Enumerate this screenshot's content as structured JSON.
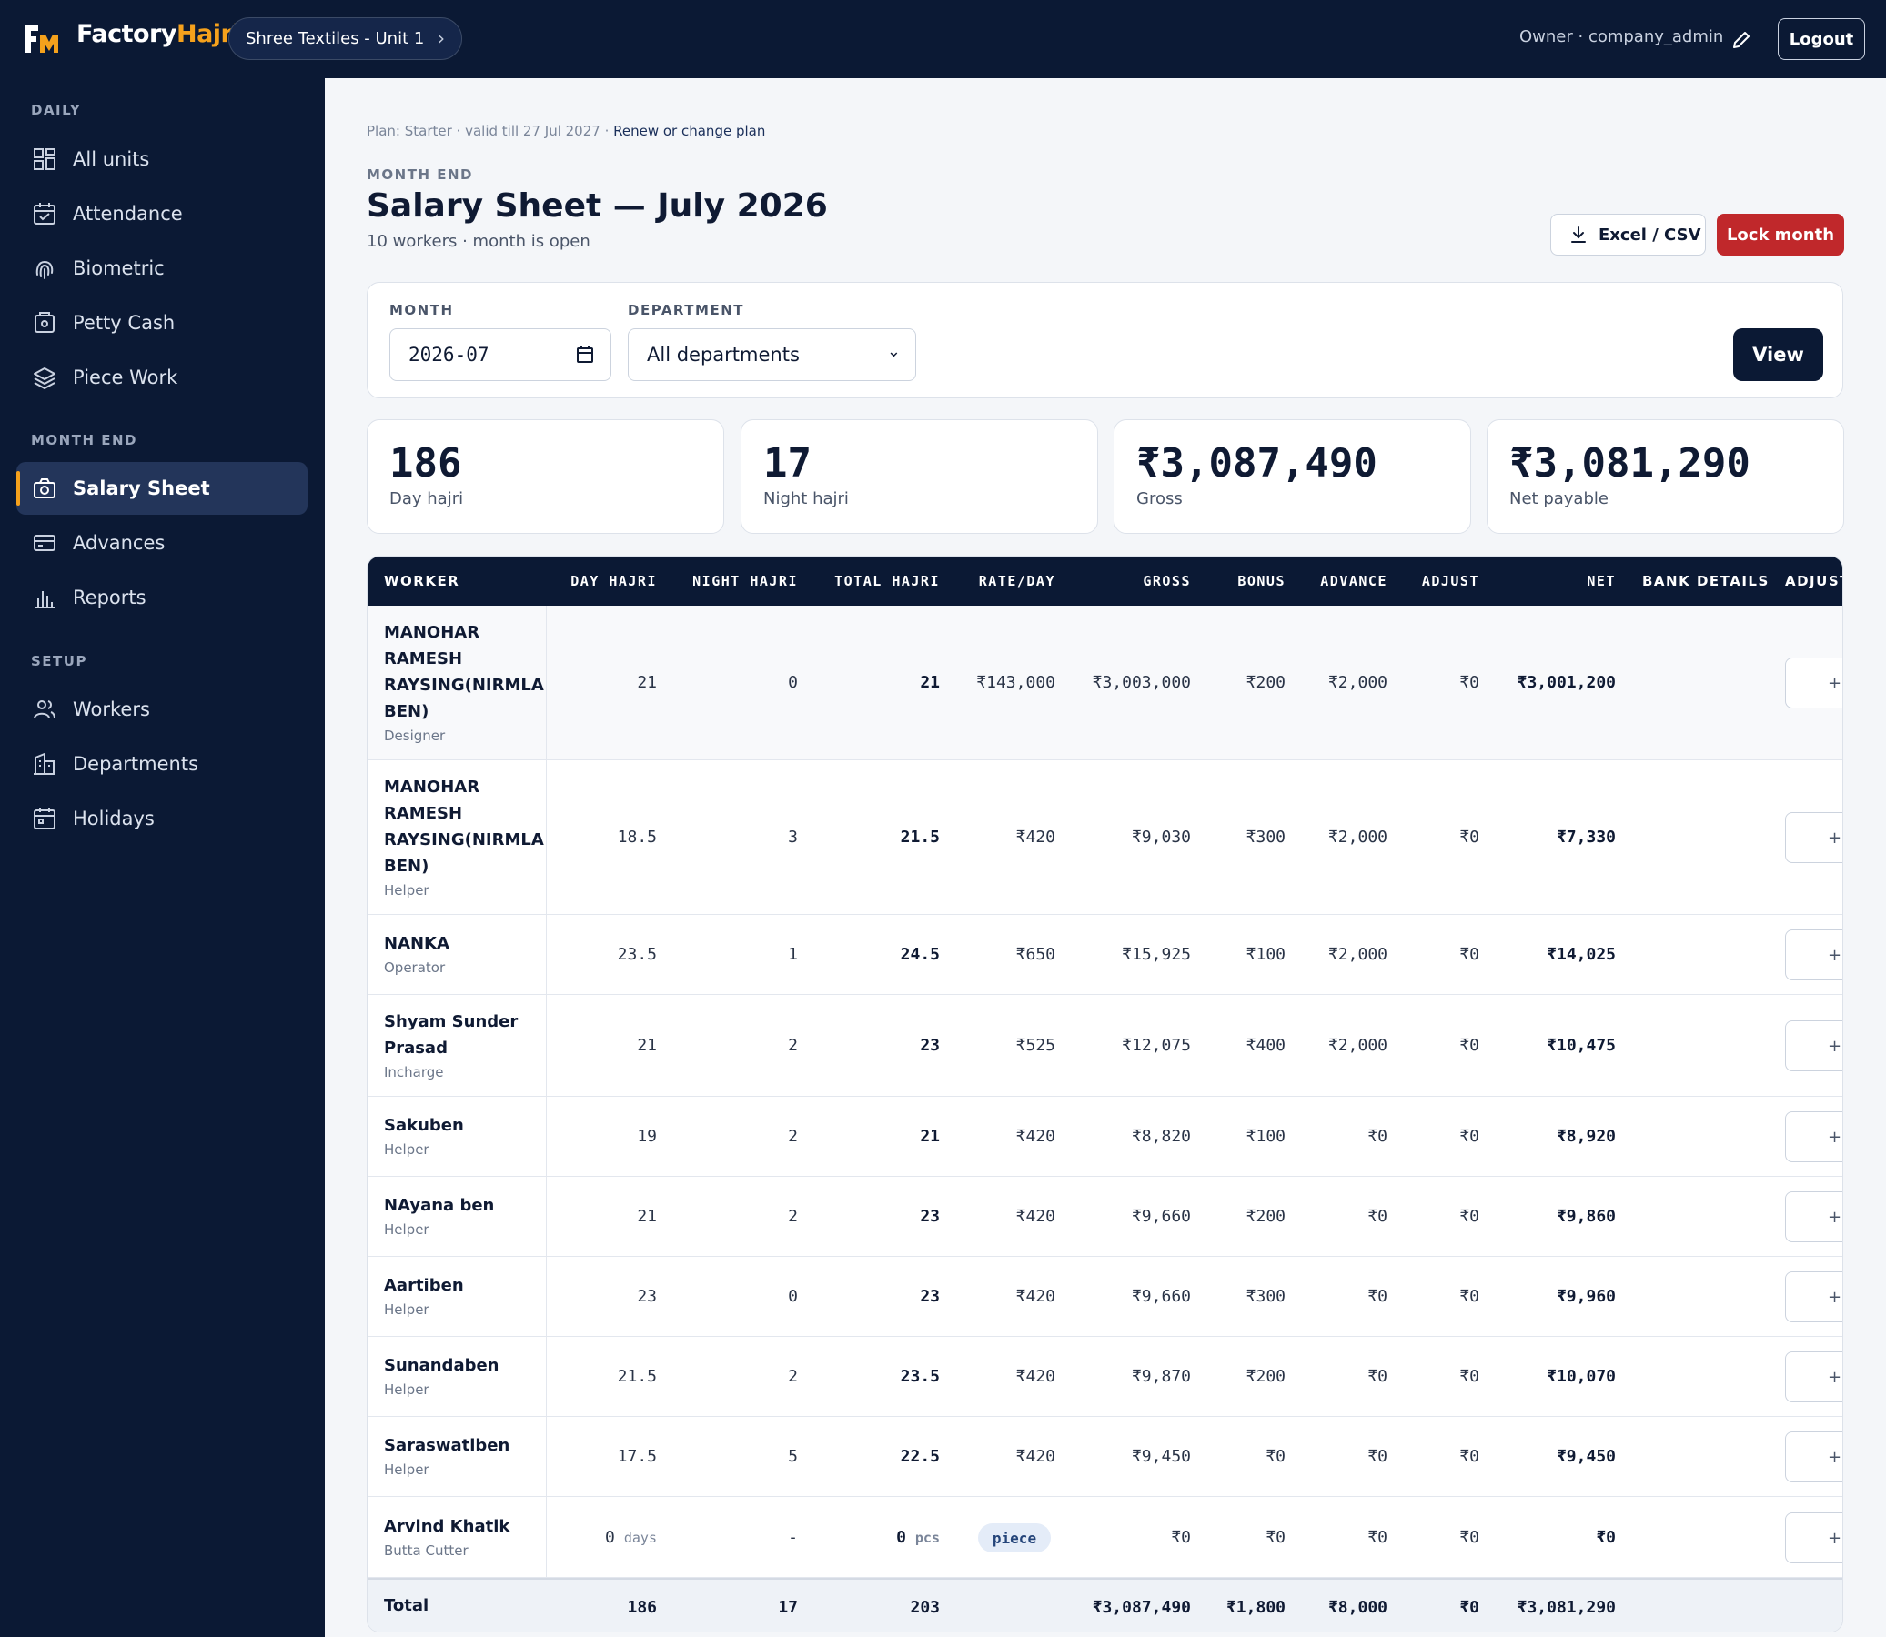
{
  "header": {
    "brand_main": "Factory",
    "brand_accent": "Hajri",
    "unit_selector": "Shree Textiles - Unit 1",
    "user": "Owner · company_admin",
    "logout": "Logout"
  },
  "sidebar": {
    "sections": {
      "daily": "DAILY",
      "month_end": "MONTH END",
      "setup": "SETUP"
    },
    "items": [
      {
        "label": "All units",
        "icon": "grid-icon"
      },
      {
        "label": "Attendance",
        "icon": "calendar-check-icon"
      },
      {
        "label": "Biometric",
        "icon": "fingerprint-icon"
      },
      {
        "label": "Petty Cash",
        "icon": "cash-box-icon"
      },
      {
        "label": "Piece Work",
        "icon": "layers-icon"
      },
      {
        "label": "Salary Sheet",
        "icon": "salary-camera-icon",
        "active": true
      },
      {
        "label": "Advances",
        "icon": "card-icon"
      },
      {
        "label": "Reports",
        "icon": "bar-chart-icon"
      },
      {
        "label": "Workers",
        "icon": "users-icon"
      },
      {
        "label": "Departments",
        "icon": "building-icon"
      },
      {
        "label": "Holidays",
        "icon": "calendar-icon"
      }
    ]
  },
  "plan": {
    "text": "Plan: Starter · valid till 27 Jul 2027 · ",
    "link": "Renew or change plan"
  },
  "page": {
    "eyebrow": "MONTH END",
    "title": "Salary Sheet — July 2026",
    "subtitle": "10 workers · month is open",
    "excel_button": "Excel / CSV",
    "lock_button": "Lock month"
  },
  "filters": {
    "month_label": "MONTH",
    "month_value": "2026-07",
    "department_label": "DEPARTMENT",
    "department_value": "All departments",
    "view_button": "View"
  },
  "stats": [
    {
      "value": "186",
      "label": "Day hajri"
    },
    {
      "value": "17",
      "label": "Night hajri"
    },
    {
      "value": "₹3,087,490",
      "label": "Gross"
    },
    {
      "value": "₹3,081,290",
      "label": "Net payable"
    }
  ],
  "table": {
    "headers": {
      "worker": "WORKER",
      "day": "DAY HAJRI",
      "night": "NIGHT HAJRI",
      "total": "TOTAL HAJRI",
      "rate": "RATE/DAY",
      "gross": "GROSS",
      "bonus": "BONUS",
      "advance": "ADVANCE",
      "adjust": "ADJUST",
      "net": "NET",
      "bank": "BANK DETAILS",
      "adjust2": "ADJUST"
    },
    "adjust_button": "+",
    "rows": [
      {
        "name": "MANOHAR RAMESH RAYSING(NIRMLA BEN)",
        "role": "Designer",
        "day": "21",
        "night": "0",
        "total": "21",
        "rate": "₹143,000",
        "gross": "₹3,003,000",
        "bonus": "₹200",
        "advance": "₹2,000",
        "adjust": "₹0",
        "net": "₹3,001,200"
      },
      {
        "name": "MANOHAR RAMESH RAYSING(NIRMLA BEN)",
        "role": "Helper",
        "day": "18.5",
        "night": "3",
        "total": "21.5",
        "rate": "₹420",
        "gross": "₹9,030",
        "bonus": "₹300",
        "advance": "₹2,000",
        "adjust": "₹0",
        "net": "₹7,330"
      },
      {
        "name": "NANKA",
        "role": "Operator",
        "day": "23.5",
        "night": "1",
        "total": "24.5",
        "rate": "₹650",
        "gross": "₹15,925",
        "bonus": "₹100",
        "advance": "₹2,000",
        "adjust": "₹0",
        "net": "₹14,025"
      },
      {
        "name": "Shyam Sunder Prasad",
        "role": "Incharge",
        "day": "21",
        "night": "2",
        "total": "23",
        "rate": "₹525",
        "gross": "₹12,075",
        "bonus": "₹400",
        "advance": "₹2,000",
        "adjust": "₹0",
        "net": "₹10,475"
      },
      {
        "name": "Sakuben",
        "role": "Helper",
        "day": "19",
        "night": "2",
        "total": "21",
        "rate": "₹420",
        "gross": "₹8,820",
        "bonus": "₹100",
        "advance": "₹0",
        "adjust": "₹0",
        "net": "₹8,920"
      },
      {
        "name": "NAyana ben",
        "role": "Helper",
        "day": "21",
        "night": "2",
        "total": "23",
        "rate": "₹420",
        "gross": "₹9,660",
        "bonus": "₹200",
        "advance": "₹0",
        "adjust": "₹0",
        "net": "₹9,860"
      },
      {
        "name": "Aartiben",
        "role": "Helper",
        "day": "23",
        "night": "0",
        "total": "23",
        "rate": "₹420",
        "gross": "₹9,660",
        "bonus": "₹300",
        "advance": "₹0",
        "adjust": "₹0",
        "net": "₹9,960"
      },
      {
        "name": "Sunandaben",
        "role": "Helper",
        "day": "21.5",
        "night": "2",
        "total": "23.5",
        "rate": "₹420",
        "gross": "₹9,870",
        "bonus": "₹200",
        "advance": "₹0",
        "adjust": "₹0",
        "net": "₹10,070"
      },
      {
        "name": "Saraswatiben",
        "role": "Helper",
        "day": "17.5",
        "night": "5",
        "total": "22.5",
        "rate": "₹420",
        "gross": "₹9,450",
        "bonus": "₹0",
        "advance": "₹0",
        "adjust": "₹0",
        "net": "₹9,450"
      },
      {
        "name": "Arvind Khatik",
        "role": "Butta Cutter",
        "day": "0",
        "day_unit": "days",
        "night": "-",
        "total": "0",
        "total_unit": "pcs",
        "rate_badge": "piece",
        "gross": "₹0",
        "bonus": "₹0",
        "advance": "₹0",
        "adjust": "₹0",
        "net": "₹0"
      }
    ],
    "totals": {
      "label": "Total",
      "day": "186",
      "night": "17",
      "total": "203",
      "gross": "₹3,087,490",
      "bonus": "₹1,800",
      "advance": "₹8,000",
      "adjust": "₹0",
      "net": "₹3,081,290"
    }
  }
}
